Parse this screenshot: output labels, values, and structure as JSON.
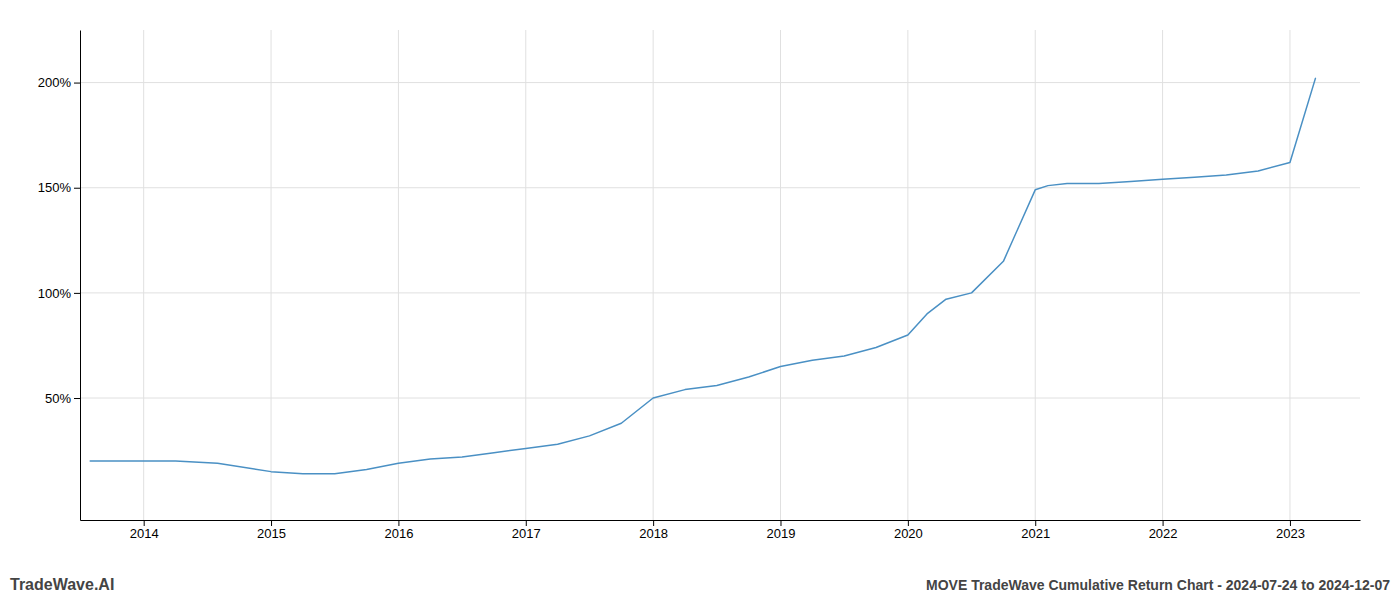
{
  "chart_data": {
    "type": "line",
    "title": "MOVE TradeWave Cumulative Return Chart - 2024-07-24 to 2024-12-07",
    "annotations": [
      "TradeWave.AI"
    ],
    "x": [
      2013.58,
      2014.0,
      2014.25,
      2014.58,
      2015.0,
      2015.25,
      2015.5,
      2015.75,
      2016.0,
      2016.25,
      2016.5,
      2016.75,
      2017.0,
      2017.25,
      2017.5,
      2017.75,
      2018.0,
      2018.25,
      2018.5,
      2018.75,
      2019.0,
      2019.25,
      2019.5,
      2019.75,
      2020.0,
      2020.15,
      2020.3,
      2020.5,
      2020.75,
      2021.0,
      2021.1,
      2021.25,
      2021.5,
      2021.75,
      2022.0,
      2022.25,
      2022.5,
      2022.75,
      2023.0,
      2023.2
    ],
    "values": [
      20,
      20,
      20,
      19,
      15,
      14,
      14,
      16,
      19,
      21,
      22,
      24,
      26,
      28,
      32,
      38,
      50,
      54,
      56,
      60,
      65,
      68,
      70,
      74,
      80,
      90,
      97,
      100,
      115,
      149,
      151,
      152,
      152,
      153,
      154,
      155,
      156,
      158,
      162,
      202
    ],
    "color": "#4a90c4",
    "xlim": [
      2013.5,
      2023.55
    ],
    "ylim": [
      -8,
      225
    ],
    "xticks": [
      2014,
      2015,
      2016,
      2017,
      2018,
      2019,
      2020,
      2021,
      2022,
      2023
    ],
    "yticks": [
      {
        "value": 50,
        "label": "50%"
      },
      {
        "value": 100,
        "label": "100%"
      },
      {
        "value": 150,
        "label": "150%"
      },
      {
        "value": 200,
        "label": "200%"
      }
    ],
    "grid": true
  }
}
